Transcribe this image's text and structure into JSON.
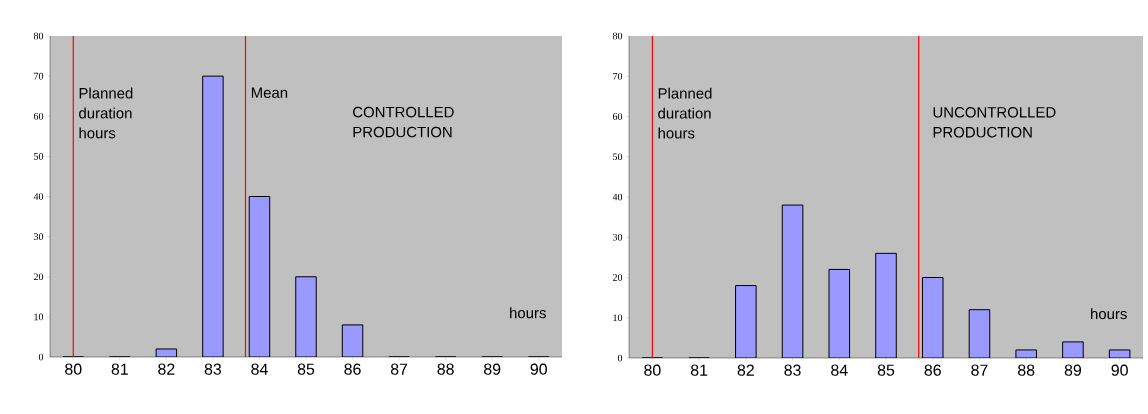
{
  "chart_data": [
    {
      "type": "bar",
      "title": "CONTROLLED PRODUCTION",
      "xlabel": "hours",
      "x": [
        80,
        81,
        82,
        83,
        84,
        85,
        86,
        87,
        88,
        89,
        90
      ],
      "values": [
        0,
        0,
        2,
        70,
        40,
        20,
        8,
        0,
        0,
        0,
        0
      ],
      "color": "#9999ff",
      "xlim": [
        79.5,
        90.5
      ],
      "xticks": [
        80,
        81,
        82,
        83,
        84,
        85,
        86,
        87,
        88,
        89,
        90
      ],
      "ylim": [
        0,
        80
      ],
      "yticks": [
        0,
        10,
        20,
        30,
        40,
        50,
        60,
        70,
        80
      ],
      "ref_lines": [
        {
          "axis": "x",
          "value": 80,
          "label": "Planned duration hours",
          "color": "#ff0000"
        },
        {
          "axis": "x",
          "value": 83.7,
          "label": "Mean",
          "color": "#ff0000"
        }
      ]
    },
    {
      "type": "bar",
      "title": "UNCONTROLLED PRODUCTION",
      "xlabel": "hours",
      "x": [
        80,
        81,
        82,
        83,
        84,
        85,
        86,
        87,
        88,
        89,
        90
      ],
      "values": [
        0,
        0,
        18,
        38,
        22,
        26,
        20,
        12,
        2,
        4,
        2
      ],
      "color": "#9999ff",
      "xlim": [
        79.5,
        90.5
      ],
      "xticks": [
        80,
        81,
        82,
        83,
        84,
        85,
        86,
        87,
        88,
        89,
        90
      ],
      "ylim": [
        0,
        80
      ],
      "yticks": [
        0,
        10,
        20,
        30,
        40,
        50,
        60,
        70,
        80
      ],
      "ref_lines": [
        {
          "axis": "x",
          "value": 80,
          "label": "Planned duration hours",
          "color": "#ff0000"
        },
        {
          "axis": "x",
          "value": 85.7,
          "color": "#ff0000"
        }
      ]
    }
  ]
}
